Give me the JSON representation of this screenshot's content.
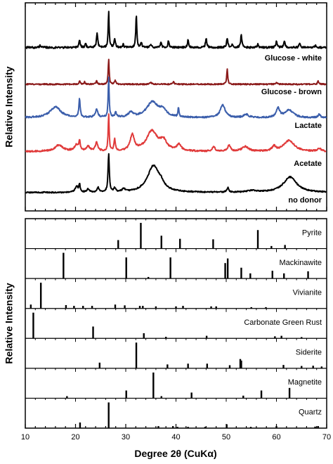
{
  "chart_data": [
    {
      "type": "line",
      "panel": "top",
      "ylabel": "Relative Intensity",
      "xlim": [
        10,
        70
      ],
      "y_ticks_shown": false,
      "series": [
        {
          "name": "Glucose - white",
          "color": "#000000",
          "baseline": 0.2,
          "noise_amp": 0.12,
          "peaks": [
            [
              13.0,
              0.15,
              0.18
            ],
            [
              20.8,
              0.5,
              0.15
            ],
            [
              22.0,
              0.25,
              0.15
            ],
            [
              24.3,
              0.9,
              0.15
            ],
            [
              26.6,
              2.3,
              0.12
            ],
            [
              27.8,
              0.6,
              0.15
            ],
            [
              29.5,
              0.2,
              0.15
            ],
            [
              32.1,
              2.2,
              0.12
            ],
            [
              33.1,
              0.3,
              0.15
            ],
            [
              35.0,
              0.2,
              0.15
            ],
            [
              37.0,
              0.3,
              0.15
            ],
            [
              38.5,
              0.4,
              0.15
            ],
            [
              42.4,
              0.5,
              0.15
            ],
            [
              46.0,
              0.6,
              0.15
            ],
            [
              50.2,
              0.6,
              0.15
            ],
            [
              51.2,
              0.25,
              0.15
            ],
            [
              53.0,
              0.8,
              0.15
            ],
            [
              56.3,
              0.2,
              0.15
            ],
            [
              60.0,
              0.4,
              0.15
            ],
            [
              61.6,
              0.45,
              0.15
            ],
            [
              64.6,
              0.3,
              0.15
            ],
            [
              67.8,
              0.15,
              0.15
            ]
          ]
        },
        {
          "name": "Glucose - brown",
          "color": "#8b1a1a",
          "baseline": 0.1,
          "noise_amp": 0.08,
          "peaks": [
            [
              20.8,
              0.2,
              0.15
            ],
            [
              21.8,
              0.15,
              0.15
            ],
            [
              24.2,
              0.2,
              0.15
            ],
            [
              26.6,
              1.6,
              0.12
            ],
            [
              27.9,
              0.25,
              0.15
            ],
            [
              35.0,
              0.1,
              0.2
            ],
            [
              39.5,
              0.15,
              0.15
            ],
            [
              50.2,
              1.0,
              0.12
            ],
            [
              60.0,
              0.12,
              0.15
            ],
            [
              68.3,
              0.2,
              0.15
            ]
          ]
        },
        {
          "name": "Lactate",
          "color": "#3b5eab",
          "baseline": 0.2,
          "noise_amp": 0.1,
          "peaks": [
            [
              16.0,
              0.7,
              1.3
            ],
            [
              20.8,
              1.2,
              0.15
            ],
            [
              24.2,
              0.5,
              0.3
            ],
            [
              26.6,
              2.6,
              0.12
            ],
            [
              28.0,
              0.3,
              0.2
            ],
            [
              31.0,
              0.3,
              0.6
            ],
            [
              35.3,
              1.0,
              1.4
            ],
            [
              37.4,
              0.4,
              0.8
            ],
            [
              40.5,
              0.6,
              0.12
            ],
            [
              49.3,
              0.8,
              0.6
            ],
            [
              54.0,
              0.2,
              0.6
            ],
            [
              60.3,
              0.6,
              0.4
            ],
            [
              62.5,
              0.5,
              1.0
            ],
            [
              68.5,
              0.2,
              0.3
            ]
          ]
        },
        {
          "name": "Acetate",
          "color": "#e03a3a",
          "baseline": 0.2,
          "noise_amp": 0.1,
          "peaks": [
            [
              16.7,
              0.4,
              1.0
            ],
            [
              20.2,
              0.4,
              0.5
            ],
            [
              20.8,
              0.6,
              0.15
            ],
            [
              22.5,
              0.3,
              0.4
            ],
            [
              24.2,
              0.55,
              0.3
            ],
            [
              26.6,
              2.4,
              0.12
            ],
            [
              27.8,
              0.8,
              0.15
            ],
            [
              31.3,
              1.0,
              0.5
            ],
            [
              35.2,
              1.3,
              1.3
            ],
            [
              37.5,
              0.6,
              0.8
            ],
            [
              40.6,
              0.4,
              0.5
            ],
            [
              47.5,
              0.3,
              0.3
            ],
            [
              50.6,
              0.4,
              0.3
            ],
            [
              53.8,
              0.3,
              0.8
            ],
            [
              59.5,
              0.3,
              0.4
            ],
            [
              62.5,
              0.7,
              1.3
            ],
            [
              68.5,
              0.2,
              0.4
            ]
          ]
        },
        {
          "name": "no donor",
          "color": "#000000",
          "baseline": 0.05,
          "noise_amp": 0.08,
          "peaks": [
            [
              20.2,
              0.4,
              0.3
            ],
            [
              20.8,
              0.5,
              0.15
            ],
            [
              22.5,
              0.2,
              0.3
            ],
            [
              24.5,
              0.3,
              0.2
            ],
            [
              26.6,
              2.5,
              0.15
            ],
            [
              27.8,
              0.25,
              0.2
            ],
            [
              29.6,
              0.2,
              0.3
            ],
            [
              35.5,
              1.7,
              1.4
            ],
            [
              37.0,
              0.3,
              0.7
            ],
            [
              50.3,
              0.3,
              0.2
            ],
            [
              55.0,
              0.1,
              1.0
            ],
            [
              62.7,
              1.0,
              1.6
            ]
          ]
        }
      ]
    },
    {
      "type": "bar",
      "panel": "bottom",
      "xlabel": "Degree 2θ (CuKα)",
      "ylabel": "Relative Intensity",
      "xlim": [
        10,
        70
      ],
      "x_ticks": [
        10,
        20,
        30,
        40,
        50,
        60,
        70
      ],
      "y_ticks_shown": false,
      "series": [
        {
          "name": "Pyrite",
          "sticks": [
            [
              28.5,
              0.33
            ],
            [
              33.0,
              1.0
            ],
            [
              37.1,
              0.5
            ],
            [
              40.8,
              0.38
            ],
            [
              47.4,
              0.36
            ],
            [
              56.3,
              0.72
            ],
            [
              59.0,
              0.1
            ],
            [
              61.7,
              0.14
            ]
          ]
        },
        {
          "name": "Mackinawite",
          "sticks": [
            [
              17.6,
              1.0
            ],
            [
              30.1,
              0.82
            ],
            [
              34.5,
              0.06
            ],
            [
              38.9,
              0.82
            ],
            [
              49.8,
              0.6
            ],
            [
              50.3,
              0.78
            ],
            [
              53.0,
              0.42
            ],
            [
              54.8,
              0.2
            ],
            [
              59.2,
              0.3
            ],
            [
              61.5,
              0.2
            ],
            [
              66.3,
              0.28
            ]
          ]
        },
        {
          "name": "Vivianite",
          "sticks": [
            [
              11.1,
              0.15
            ],
            [
              13.1,
              1.0
            ],
            [
              18.1,
              0.13
            ],
            [
              19.7,
              0.1
            ],
            [
              21.5,
              0.1
            ],
            [
              23.3,
              0.1
            ],
            [
              27.9,
              0.15
            ],
            [
              29.8,
              0.12
            ],
            [
              32.8,
              0.1
            ],
            [
              33.4,
              0.1
            ],
            [
              36.0,
              0.08
            ],
            [
              40.0,
              0.08
            ],
            [
              41.4,
              0.1
            ],
            [
              47.0,
              0.08
            ],
            [
              48.0,
              0.08
            ],
            [
              55.0,
              0.05
            ],
            [
              57.9,
              0.05
            ]
          ]
        },
        {
          "name": "Carbonate Green Rust",
          "sticks": [
            [
              11.6,
              1.0
            ],
            [
              23.5,
              0.46
            ],
            [
              33.6,
              0.2
            ],
            [
              38.0,
              0.06
            ],
            [
              46.1,
              0.1
            ],
            [
              59.7,
              0.08
            ],
            [
              61.0,
              0.1
            ],
            [
              65.0,
              0.05
            ]
          ]
        },
        {
          "name": "Siderite",
          "sticks": [
            [
              24.8,
              0.22
            ],
            [
              32.1,
              1.0
            ],
            [
              38.3,
              0.15
            ],
            [
              42.4,
              0.18
            ],
            [
              46.2,
              0.18
            ],
            [
              50.7,
              0.12
            ],
            [
              52.8,
              0.36
            ],
            [
              53.0,
              0.3
            ],
            [
              61.4,
              0.13
            ],
            [
              65.0,
              0.09
            ],
            [
              67.3,
              0.1
            ],
            [
              69.0,
              0.07
            ]
          ]
        },
        {
          "name": "Magnetite",
          "sticks": [
            [
              18.3,
              0.08
            ],
            [
              30.1,
              0.3
            ],
            [
              35.5,
              1.0
            ],
            [
              37.1,
              0.08
            ],
            [
              43.1,
              0.22
            ],
            [
              53.4,
              0.1
            ],
            [
              57.0,
              0.3
            ],
            [
              62.6,
              0.4
            ]
          ]
        },
        {
          "name": "Quartz",
          "sticks": [
            [
              20.9,
              0.22
            ],
            [
              26.6,
              1.0
            ],
            [
              36.5,
              0.08
            ],
            [
              39.4,
              0.08
            ],
            [
              40.3,
              0.05
            ],
            [
              42.4,
              0.05
            ],
            [
              45.8,
              0.05
            ],
            [
              50.1,
              0.15
            ],
            [
              54.9,
              0.05
            ],
            [
              60.0,
              0.08
            ],
            [
              67.7,
              0.06
            ],
            [
              68.3,
              0.08
            ]
          ]
        }
      ]
    }
  ]
}
